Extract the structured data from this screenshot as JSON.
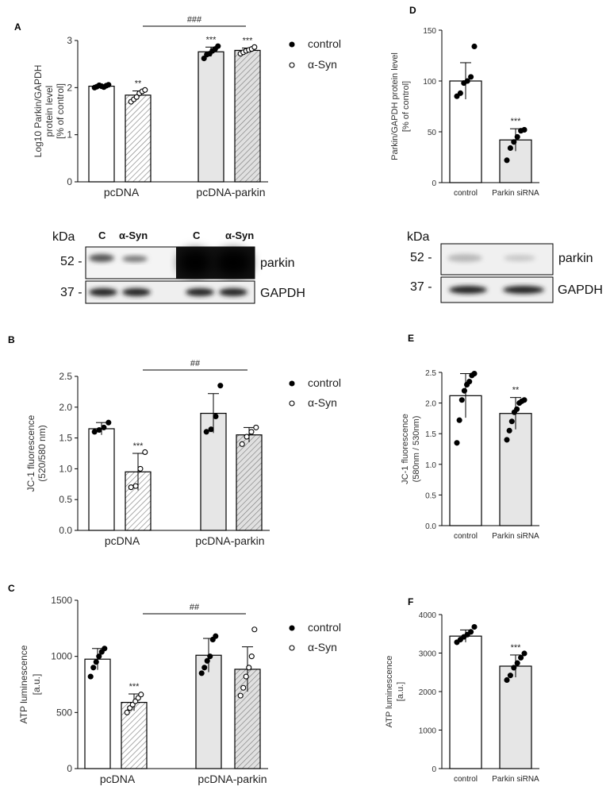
{
  "colors": {
    "control_fill": "#ffffff",
    "syn_fill": "#ffffff",
    "parkin_fill": "#e6e6e6",
    "hatch": "#777777",
    "axis": "#000000"
  },
  "chart_data": [
    {
      "panel": "A",
      "type": "bar",
      "ylabel": [
        "Log10 Parkin/GAPDH",
        "protein level",
        "[% of control]"
      ],
      "ylim": [
        0,
        3
      ],
      "yticks": [
        "0",
        "1",
        "2",
        "3"
      ],
      "categories": [
        "pcDNA",
        "pcDNA-parkin"
      ],
      "legend": [
        "control",
        "α-Syn"
      ],
      "bracket": "###",
      "bars": [
        {
          "group": 0,
          "series": 1,
          "value": 2.03,
          "err": 0.03,
          "fill": "white",
          "points": [
            2.0,
            2.02,
            2.05,
            2.03,
            2.01,
            2.04,
            2.06
          ],
          "sig": ""
        },
        {
          "group": 0,
          "series": 2,
          "value": 1.84,
          "err": 0.09,
          "fill": "hatch",
          "points": [
            1.7,
            1.75,
            1.8,
            1.88,
            1.92,
            1.95
          ],
          "sig": "**"
        },
        {
          "group": 1,
          "series": 1,
          "value": 2.76,
          "err": 0.1,
          "fill": "grey",
          "points": [
            2.62,
            2.7,
            2.72,
            2.78,
            2.82,
            2.88
          ],
          "sig": "***"
        },
        {
          "group": 1,
          "series": 2,
          "value": 2.79,
          "err": 0.05,
          "fill": "hatchgrey",
          "points": [
            2.72,
            2.75,
            2.78,
            2.8,
            2.82,
            2.86
          ],
          "sig": "***"
        }
      ]
    },
    {
      "panel": "B",
      "type": "bar",
      "ylabel": [
        "JC-1 fluorescence",
        "(520/580 nm)"
      ],
      "ylim": [
        0,
        2.5
      ],
      "yticks": [
        "0.0",
        "0.5",
        "1.0",
        "1.5",
        "2.0",
        "2.5"
      ],
      "categories": [
        "pcDNA",
        "pcDNA-parkin"
      ],
      "legend": [
        "control",
        "α-Syn"
      ],
      "bracket": "##",
      "bars": [
        {
          "group": 0,
          "series": 1,
          "value": 1.65,
          "err": 0.1,
          "fill": "white",
          "points": [
            1.6,
            1.63,
            1.67,
            1.75
          ],
          "sig": ""
        },
        {
          "group": 0,
          "series": 2,
          "value": 0.95,
          "err": 0.3,
          "fill": "hatch",
          "points": [
            0.7,
            0.72,
            1.0,
            1.27
          ],
          "sig": "***"
        },
        {
          "group": 1,
          "series": 1,
          "value": 1.9,
          "err": 0.32,
          "fill": "grey",
          "points": [
            1.6,
            1.64,
            1.85,
            2.35
          ],
          "sig": ""
        },
        {
          "group": 1,
          "series": 2,
          "value": 1.55,
          "err": 0.12,
          "fill": "hatchgrey",
          "points": [
            1.4,
            1.52,
            1.6,
            1.67
          ],
          "sig": ""
        }
      ]
    },
    {
      "panel": "C",
      "type": "bar",
      "ylabel": [
        "ATP luminescence",
        "[a.u.]"
      ],
      "ylim": [
        0,
        1500
      ],
      "yticks": [
        "0",
        "500",
        "1000",
        "1500"
      ],
      "categories": [
        "pcDNA",
        "pcDNA-parkin"
      ],
      "legend": [
        "control",
        "α-Syn"
      ],
      "bracket": "##",
      "bars": [
        {
          "group": 0,
          "series": 1,
          "value": 975,
          "err": 95,
          "fill": "white",
          "points": [
            820,
            900,
            950,
            1000,
            1040,
            1070
          ],
          "sig": ""
        },
        {
          "group": 0,
          "series": 2,
          "value": 590,
          "err": 75,
          "fill": "hatch",
          "points": [
            500,
            540,
            570,
            600,
            630,
            660
          ],
          "sig": "***"
        },
        {
          "group": 1,
          "series": 1,
          "value": 1010,
          "err": 150,
          "fill": "grey",
          "points": [
            850,
            900,
            960,
            1000,
            1150,
            1180
          ],
          "sig": ""
        },
        {
          "group": 1,
          "series": 2,
          "value": 885,
          "err": 200,
          "fill": "hatchgrey",
          "points": [
            650,
            720,
            820,
            900,
            1000,
            1240
          ],
          "sig": ""
        }
      ]
    },
    {
      "panel": "D",
      "type": "bar",
      "ylabel": [
        "Parkin/GAPDH protein level",
        "[% of control]"
      ],
      "ylim": [
        0,
        150
      ],
      "yticks": [
        "0",
        "50",
        "100",
        "150"
      ],
      "categories": [
        "control",
        "Parkin siRNA"
      ],
      "bars": [
        {
          "value": 100,
          "err": 18,
          "fill": "white",
          "points": [
            85,
            88,
            98,
            100,
            104,
            134
          ],
          "sig": ""
        },
        {
          "value": 42,
          "err": 11,
          "fill": "grey",
          "points": [
            22,
            34,
            40,
            45,
            51,
            52
          ],
          "sig": "***"
        }
      ]
    },
    {
      "panel": "E",
      "type": "bar",
      "ylabel": [
        "JC-1 fluorescence",
        "(580nm / 530nm)"
      ],
      "ylim": [
        0,
        2.5
      ],
      "yticks": [
        "0.0",
        "0.5",
        "1.0",
        "1.5",
        "2.0",
        "2.5"
      ],
      "categories": [
        "control",
        "Parkin siRNA"
      ],
      "bars": [
        {
          "value": 2.12,
          "err": 0.36,
          "fill": "white",
          "points": [
            1.35,
            1.72,
            2.05,
            2.2,
            2.3,
            2.35,
            2.45,
            2.48
          ],
          "sig": ""
        },
        {
          "value": 1.83,
          "err": 0.26,
          "fill": "grey",
          "points": [
            1.4,
            1.55,
            1.7,
            1.85,
            1.9,
            2.0,
            2.03,
            2.05
          ],
          "sig": "**"
        }
      ]
    },
    {
      "panel": "F",
      "type": "bar",
      "ylabel": [
        "ATP luminescence",
        "[a.u.]"
      ],
      "ylim": [
        0,
        4000
      ],
      "yticks": [
        "0",
        "1000",
        "2000",
        "3000",
        "4000"
      ],
      "categories": [
        "control",
        "Parkin siRNA"
      ],
      "bars": [
        {
          "value": 3440,
          "err": 160,
          "fill": "white",
          "points": [
            3280,
            3350,
            3420,
            3480,
            3550,
            3680
          ],
          "sig": ""
        },
        {
          "value": 2660,
          "err": 290,
          "fill": "grey",
          "points": [
            2300,
            2420,
            2620,
            2740,
            2880,
            2990
          ],
          "sig": "***"
        }
      ]
    }
  ],
  "blots": {
    "left": {
      "kda": "kDa",
      "m52": "52 -",
      "m37": "37 -",
      "lanes": [
        "C",
        "α-Syn",
        "C",
        "α-Syn"
      ],
      "protein": "parkin",
      "loading": "GAPDH"
    },
    "right": {
      "kda": "kDa",
      "m52": "52 -",
      "m37": "37 -",
      "protein": "parkin",
      "loading": "GAPDH"
    }
  }
}
